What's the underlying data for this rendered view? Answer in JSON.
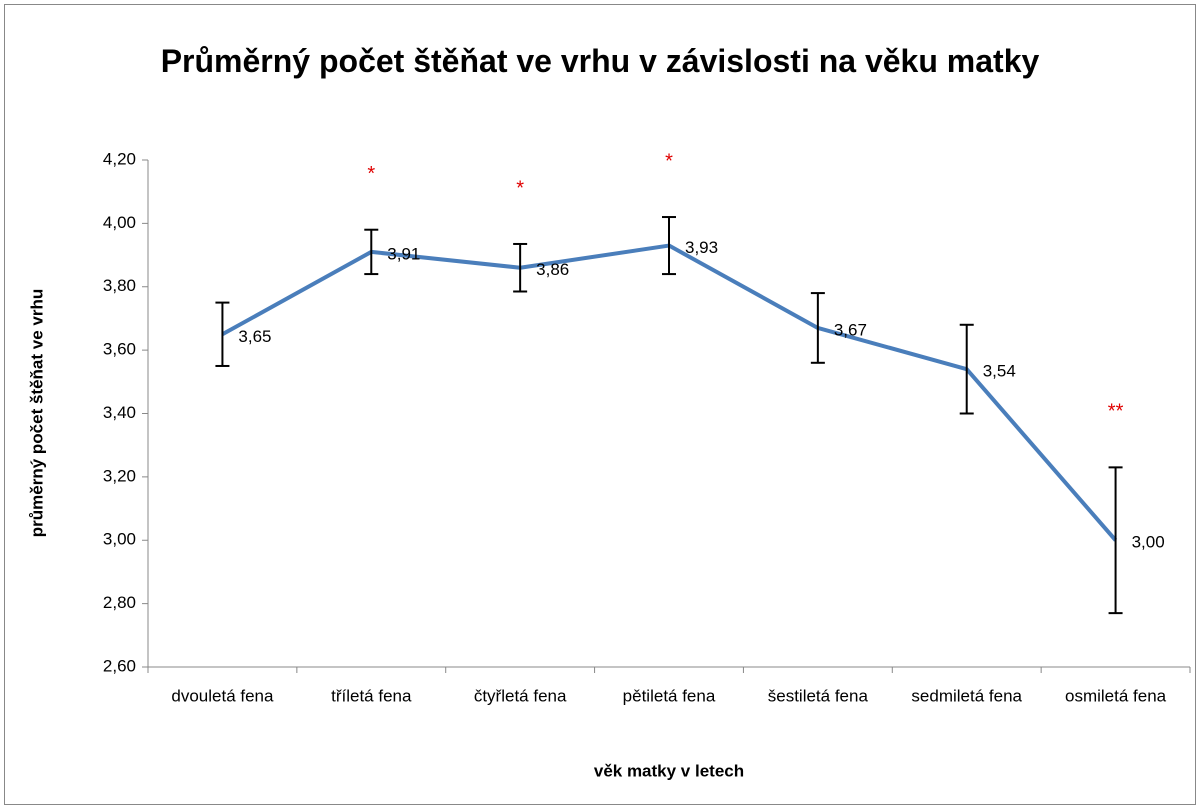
{
  "chart_data": {
    "type": "line",
    "title": "Průměrný počet štěňat ve vrhu v závislosti na věku matky",
    "x_label": "věk matky v letech",
    "y_label": "průměrný počet štěňat ve vrhu",
    "categories": [
      "dvouletá fena",
      "tříletá fena",
      "čtyřletá fena",
      "pětiletá fena",
      "šestiletá fena",
      "sedmiletá fena",
      "osmiletá fena"
    ],
    "values": [
      3.65,
      3.91,
      3.86,
      3.93,
      3.67,
      3.54,
      3.0
    ],
    "value_labels": [
      "3,65",
      "3,91",
      "3,86",
      "3,93",
      "3,67",
      "3,54",
      "3,00"
    ],
    "errors": [
      0.1,
      0.07,
      0.075,
      0.09,
      0.11,
      0.14,
      0.23
    ],
    "significance": [
      null,
      "*",
      "*",
      "*",
      null,
      null,
      "**"
    ],
    "color": "#4a7ebb",
    "ylim": [
      2.6,
      4.2
    ],
    "yticks": [
      {
        "value": 2.6,
        "label": "2,60"
      },
      {
        "value": 2.8,
        "label": "2,80"
      },
      {
        "value": 3.0,
        "label": "3,00"
      },
      {
        "value": 3.2,
        "label": "3,20"
      },
      {
        "value": 3.4,
        "label": "3,40"
      },
      {
        "value": 3.6,
        "label": "3,60"
      },
      {
        "value": 3.8,
        "label": "3,80"
      },
      {
        "value": 4.0,
        "label": "4,00"
      },
      {
        "value": 4.2,
        "label": "4,20"
      }
    ]
  }
}
